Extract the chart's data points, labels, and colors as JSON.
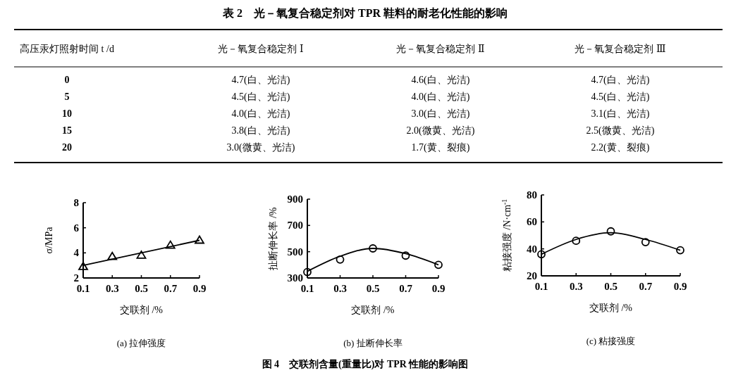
{
  "chart_data": [
    {
      "type": "heatmap",
      "title": "表 2　光－氧复合稳定剂对 TPR 鞋料的耐老化性能的影响",
      "ylabel": "高压汞灯照射时间 t /d",
      "categories": [
        "光－氧复合稳定剂 Ⅰ",
        "光－氧复合稳定剂 Ⅱ",
        "光－氧复合稳定剂 Ⅲ"
      ],
      "y_categories": [
        "0",
        "5",
        "10",
        "15",
        "20"
      ],
      "cells": [
        [
          4.7,
          4.6,
          4.7
        ],
        [
          4.5,
          4.0,
          4.5
        ],
        [
          4.0,
          3.0,
          3.1
        ],
        [
          3.8,
          2.0,
          2.5
        ],
        [
          3.0,
          1.7,
          2.2
        ]
      ],
      "cell_labels": [
        [
          "4.7(白、光洁)",
          "4.6(白、光洁)",
          "4.7(白、光洁)"
        ],
        [
          "4.5(白、光洁)",
          "4.0(白、光洁)",
          "4.5(白、光洁)"
        ],
        [
          "4.0(白、光洁)",
          "3.0(白、光洁)",
          "3.1(白、光洁)"
        ],
        [
          "3.8(白、光洁)",
          "2.0(微黄、光洁)",
          "2.5(微黄、光洁)"
        ],
        [
          "3.0(微黄、光洁)",
          "1.7(黄、裂痕)",
          "2.2(黄、裂痕)"
        ]
      ]
    },
    {
      "type": "scatter",
      "title": "(a) 拉伸强度",
      "xlabel": "交联剂 /%",
      "ylabel": "σ/MPa",
      "xlim": [
        0.1,
        0.9
      ],
      "xticks": [
        0.1,
        0.3,
        0.5,
        0.7,
        0.9
      ],
      "ylim": [
        2,
        8
      ],
      "yticks": [
        2,
        4,
        6,
        8
      ],
      "series": [
        {
          "type": "scatter",
          "marker": "triangle",
          "color": "#000000",
          "x": [
            0.1,
            0.3,
            0.5,
            0.7,
            0.9
          ],
          "values": [
            2.9,
            3.7,
            3.8,
            4.6,
            5.0
          ]
        },
        {
          "type": "line",
          "color": "#000000",
          "x": [
            0.1,
            0.9
          ],
          "values": [
            3.0,
            5.0
          ]
        }
      ]
    },
    {
      "type": "scatter",
      "title": "(b) 扯断伸长率",
      "xlabel": "交联剂 /%",
      "ylabel": "扯断伸长率 /%",
      "xlim": [
        0.1,
        0.9
      ],
      "xticks": [
        0.1,
        0.3,
        0.5,
        0.7,
        0.9
      ],
      "ylim": [
        300,
        900
      ],
      "yticks": [
        300,
        500,
        700,
        900
      ],
      "series": [
        {
          "type": "scatter",
          "marker": "circle",
          "color": "#000000",
          "x": [
            0.1,
            0.3,
            0.5,
            0.7,
            0.9
          ],
          "values": [
            345,
            440,
            525,
            470,
            400
          ]
        },
        {
          "type": "line",
          "color": "#000000",
          "x": [
            0.1,
            0.3,
            0.5,
            0.7,
            0.9
          ],
          "values": [
            350,
            465,
            525,
            485,
            400
          ]
        }
      ]
    },
    {
      "type": "scatter",
      "title": "(c) 粘接强度",
      "xlabel": "交联剂 /%",
      "ylabel": "粘接强度 /N·cm$^{-1}$",
      "xlim": [
        0.1,
        0.9
      ],
      "xticks": [
        0.1,
        0.3,
        0.5,
        0.7,
        0.9
      ],
      "ylim": [
        20,
        80
      ],
      "yticks": [
        20,
        40,
        60,
        80
      ],
      "annotations": [
        "图 4　交联剂含量(重量比)对 TPR 性能的影响图"
      ],
      "series": [
        {
          "type": "scatter",
          "marker": "circle",
          "color": "#000000",
          "x": [
            0.1,
            0.3,
            0.5,
            0.7,
            0.9
          ],
          "values": [
            36,
            46,
            53,
            45,
            39
          ]
        },
        {
          "type": "line",
          "color": "#000000",
          "x": [
            0.1,
            0.3,
            0.5,
            0.7,
            0.9
          ],
          "values": [
            36,
            47,
            52,
            47,
            39
          ]
        }
      ]
    }
  ]
}
